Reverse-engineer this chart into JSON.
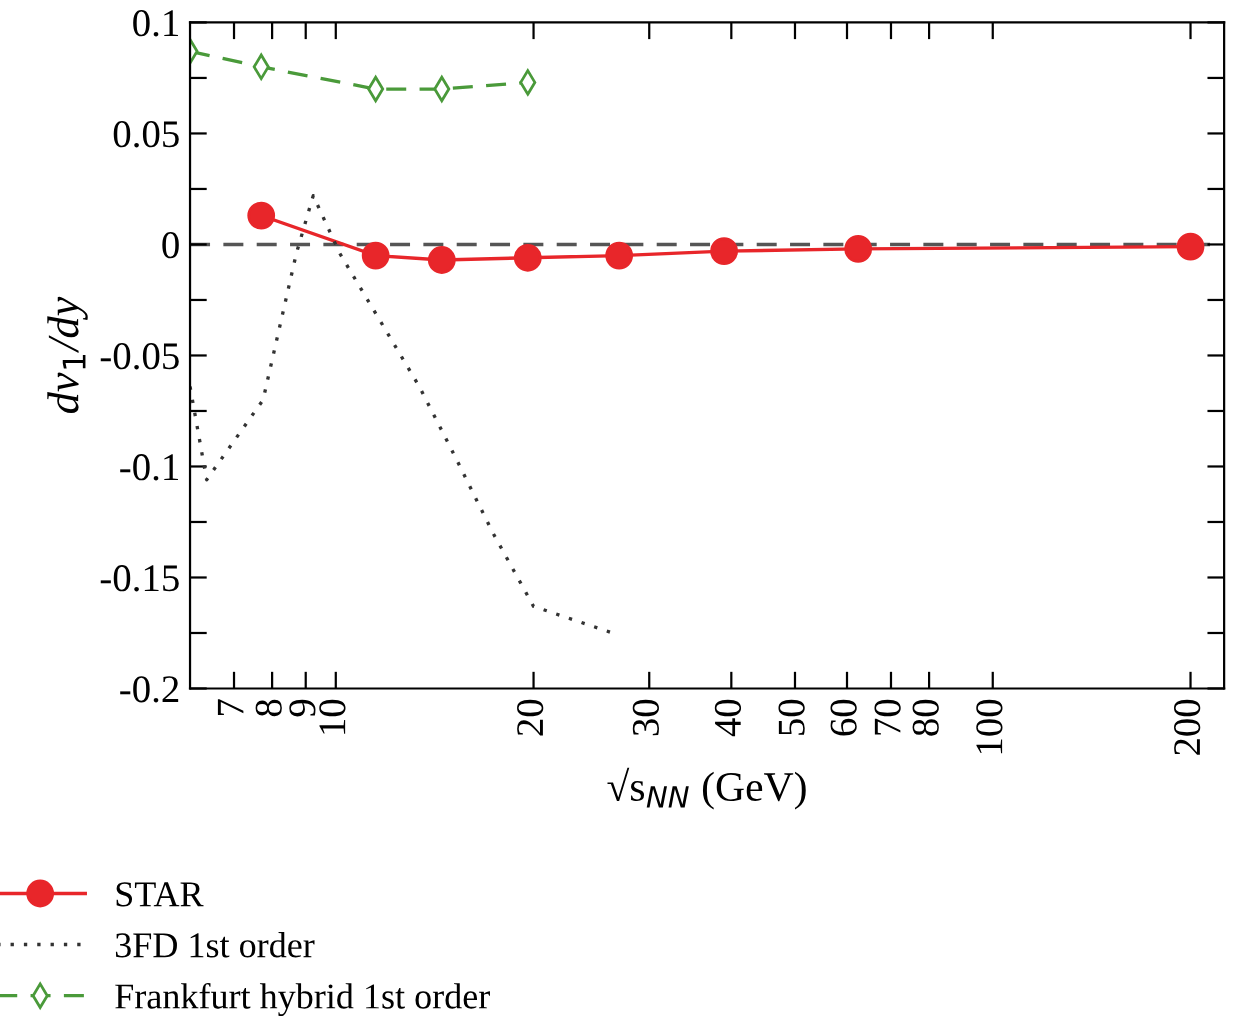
{
  "chart_data": {
    "type": "line",
    "xlabel": "√s$_{NN}$ (GeV)",
    "ylabel": "dv$_{1}$/dy",
    "log": "x",
    "xlim": [
      6,
      225
    ],
    "xticks": [
      7,
      8,
      9,
      10,
      20,
      30,
      40,
      50,
      60,
      70,
      80,
      100,
      200
    ],
    "ylim": [
      -0.2,
      0.1
    ],
    "yticks": [
      -0.2,
      {
        "value": -0.175,
        "label": null
      },
      -0.15,
      {
        "value": -0.125,
        "label": null
      },
      -0.1,
      {
        "value": -0.075,
        "label": null
      },
      -0.05,
      {
        "value": -0.025,
        "label": null
      },
      0,
      {
        "value": 0.025,
        "label": null
      },
      0.05,
      {
        "value": 0.075,
        "label": null
      },
      0.1
    ],
    "grid": false,
    "legend": "bottom left",
    "ref_lines": [
      {
        "axis": "y",
        "value": 0,
        "color": "#555555",
        "line_style": "dashed"
      }
    ],
    "series": [
      {
        "name": "STAR",
        "color": "#e8262a",
        "marker": "circle",
        "line_style": "solid",
        "x": [
          7.7,
          11.5,
          14.5,
          19.6,
          27,
          39,
          62.4,
          200
        ],
        "values": [
          0.013,
          -0.005,
          -0.007,
          -0.006,
          -0.005,
          -0.003,
          -0.002,
          -0.001
        ]
      },
      {
        "name": "3FD 1st order",
        "color": "#333333",
        "marker": "none",
        "line_style": "dotted",
        "x": [
          6.0,
          6.36,
          7.75,
          8.71,
          9.24,
          10.14,
          11.66,
          13.4,
          15.1,
          17.35,
          20.0,
          26.4
        ],
        "values": [
          -0.064,
          -0.106,
          -0.07,
          -0.004,
          0.022,
          -0.004,
          -0.034,
          -0.064,
          -0.094,
          -0.13,
          -0.163,
          -0.175
        ]
      },
      {
        "name": "Frankfurt hybrid 1st order",
        "color": "#4a9a3a",
        "marker": "diamond",
        "line_style": "dashed",
        "x": [
          6.0,
          7.7,
          11.5,
          14.5,
          19.6
        ],
        "values": [
          0.087,
          0.08,
          0.07,
          0.07,
          0.073
        ]
      }
    ]
  }
}
